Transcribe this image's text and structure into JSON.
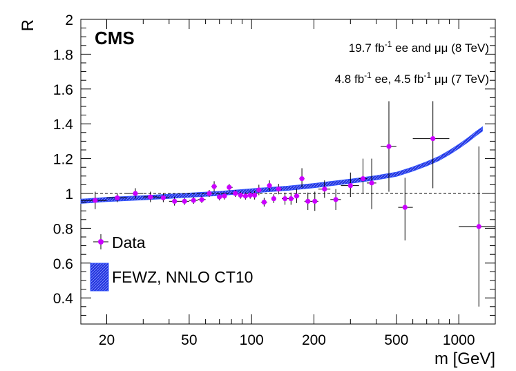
{
  "chart_data": {
    "type": "scatter",
    "title": "",
    "experiment_label": "CMS",
    "annotations": [
      {
        "text_parts": [
          "19.7 fb",
          "-1",
          " ee and ",
          "μμ",
          " (8 TeV)"
        ]
      },
      {
        "text_parts": [
          "4.8 fb",
          "-1",
          " ee, 4.5 fb",
          "-1",
          " ",
          "μμ",
          " (7 TeV)"
        ]
      }
    ],
    "xlabel": "m [GeV]",
    "ylabel": "R",
    "xscale": "log",
    "xlim": [
      15,
      1500
    ],
    "ylim": [
      0.25,
      2.0
    ],
    "xticks": [
      20,
      50,
      100,
      200,
      500,
      1000
    ],
    "xtick_labels": [
      "20",
      "50",
      "100",
      "200",
      "500",
      "1000"
    ],
    "yticks": [
      0.4,
      0.6,
      0.8,
      1.0,
      1.2,
      1.4,
      1.6,
      1.8,
      2.0
    ],
    "ytick_labels": [
      "0.4",
      "0.6",
      "0.8",
      "1",
      "1.2",
      "1.4",
      "1.6",
      "1.8",
      "2"
    ],
    "reference_line": 1.0,
    "legend": {
      "position": "bottom-left",
      "entries": [
        {
          "label": "Data",
          "kind": "marker"
        },
        {
          "label": "FEWZ, NNLO CT10",
          "kind": "band"
        }
      ]
    },
    "colors": {
      "data": "#cc00ff",
      "band": "#2233dd",
      "band_edge": "#3355ff"
    },
    "series": [
      {
        "name": "Data",
        "points": [
          {
            "x": 17.6,
            "xlo": 15,
            "xhi": 20,
            "y": 0.96,
            "ylo": 0.91,
            "yhi": 1.01
          },
          {
            "x": 22.5,
            "xlo": 20,
            "xhi": 25,
            "y": 0.975,
            "ylo": 0.95,
            "yhi": 1.0
          },
          {
            "x": 27.5,
            "xlo": 25,
            "xhi": 30,
            "y": 1.0,
            "ylo": 0.97,
            "yhi": 1.03
          },
          {
            "x": 32.5,
            "xlo": 30,
            "xhi": 35,
            "y": 0.98,
            "ylo": 0.95,
            "yhi": 1.01
          },
          {
            "x": 37.5,
            "xlo": 35,
            "xhi": 40,
            "y": 0.975,
            "ylo": 0.95,
            "yhi": 1.0
          },
          {
            "x": 42.5,
            "xlo": 40,
            "xhi": 45,
            "y": 0.955,
            "ylo": 0.93,
            "yhi": 0.98
          },
          {
            "x": 47.5,
            "xlo": 45,
            "xhi": 50,
            "y": 0.955,
            "ylo": 0.935,
            "yhi": 0.975
          },
          {
            "x": 52.5,
            "xlo": 50,
            "xhi": 55,
            "y": 0.96,
            "ylo": 0.94,
            "yhi": 0.98
          },
          {
            "x": 57.5,
            "xlo": 55,
            "xhi": 60,
            "y": 0.965,
            "ylo": 0.945,
            "yhi": 0.985
          },
          {
            "x": 62.5,
            "xlo": 60,
            "xhi": 64,
            "y": 1.0,
            "ylo": 0.98,
            "yhi": 1.02
          },
          {
            "x": 66,
            "xlo": 64,
            "xhi": 68,
            "y": 1.04,
            "ylo": 1.01,
            "yhi": 1.07
          },
          {
            "x": 70,
            "xlo": 68,
            "xhi": 72,
            "y": 0.98,
            "ylo": 0.96,
            "yhi": 1.0
          },
          {
            "x": 74,
            "xlo": 72,
            "xhi": 76,
            "y": 0.985,
            "ylo": 0.965,
            "yhi": 1.005
          },
          {
            "x": 78,
            "xlo": 76,
            "xhi": 81,
            "y": 1.035,
            "ylo": 1.015,
            "yhi": 1.055
          },
          {
            "x": 83.5,
            "xlo": 81,
            "xhi": 86,
            "y": 1.0,
            "ylo": 0.98,
            "yhi": 1.02
          },
          {
            "x": 88.5,
            "xlo": 86,
            "xhi": 91,
            "y": 0.99,
            "ylo": 0.97,
            "yhi": 1.01
          },
          {
            "x": 93.5,
            "xlo": 91,
            "xhi": 96,
            "y": 0.985,
            "ylo": 0.965,
            "yhi": 1.005
          },
          {
            "x": 98.5,
            "xlo": 96,
            "xhi": 101,
            "y": 0.99,
            "ylo": 0.97,
            "yhi": 1.01
          },
          {
            "x": 103.5,
            "xlo": 101,
            "xhi": 106,
            "y": 0.99,
            "ylo": 0.965,
            "yhi": 1.015
          },
          {
            "x": 108.5,
            "xlo": 106,
            "xhi": 111,
            "y": 1.02,
            "ylo": 0.99,
            "yhi": 1.05
          },
          {
            "x": 115,
            "xlo": 111,
            "xhi": 119,
            "y": 0.95,
            "ylo": 0.925,
            "yhi": 0.975
          },
          {
            "x": 122,
            "xlo": 119,
            "xhi": 125,
            "y": 1.045,
            "ylo": 1.015,
            "yhi": 1.075
          },
          {
            "x": 128,
            "xlo": 125,
            "xhi": 131,
            "y": 0.97,
            "ylo": 0.945,
            "yhi": 0.995
          },
          {
            "x": 135,
            "xlo": 131,
            "xhi": 140,
            "y": 1.025,
            "ylo": 0.995,
            "yhi": 1.055
          },
          {
            "x": 145,
            "xlo": 140,
            "xhi": 150,
            "y": 0.97,
            "ylo": 0.935,
            "yhi": 1.005
          },
          {
            "x": 155,
            "xlo": 150,
            "xhi": 160,
            "y": 0.97,
            "ylo": 0.935,
            "yhi": 1.005
          },
          {
            "x": 165,
            "xlo": 160,
            "xhi": 170,
            "y": 0.985,
            "ylo": 0.945,
            "yhi": 1.025
          },
          {
            "x": 175,
            "xlo": 170,
            "xhi": 180,
            "y": 1.085,
            "ylo": 1.035,
            "yhi": 1.145
          },
          {
            "x": 187,
            "xlo": 180,
            "xhi": 194,
            "y": 0.955,
            "ylo": 0.905,
            "yhi": 1.005
          },
          {
            "x": 202,
            "xlo": 194,
            "xhi": 210,
            "y": 0.955,
            "ylo": 0.9,
            "yhi": 1.01
          },
          {
            "x": 225,
            "xlo": 210,
            "xhi": 240,
            "y": 1.025,
            "ylo": 0.975,
            "yhi": 1.075
          },
          {
            "x": 255,
            "xlo": 240,
            "xhi": 270,
            "y": 0.965,
            "ylo": 0.905,
            "yhi": 1.025
          },
          {
            "x": 300,
            "xlo": 270,
            "xhi": 330,
            "y": 1.045,
            "ylo": 0.98,
            "yhi": 1.12
          },
          {
            "x": 345,
            "xlo": 330,
            "xhi": 360,
            "y": 1.085,
            "ylo": 1.0,
            "yhi": 1.2
          },
          {
            "x": 380,
            "xlo": 360,
            "xhi": 400,
            "y": 1.06,
            "ylo": 0.91,
            "yhi": 1.2
          },
          {
            "x": 460,
            "xlo": 420,
            "xhi": 500,
            "y": 1.27,
            "ylo": 1.01,
            "yhi": 1.53
          },
          {
            "x": 550,
            "xlo": 510,
            "xhi": 600,
            "y": 0.92,
            "ylo": 0.73,
            "yhi": 1.09
          },
          {
            "x": 750,
            "xlo": 600,
            "xhi": 900,
            "y": 1.315,
            "ylo": 1.03,
            "yhi": 1.53
          },
          {
            "x": 1250,
            "xlo": 1000,
            "xhi": 1500,
            "y": 0.81,
            "ylo": 0.35,
            "yhi": 1.27
          }
        ]
      },
      {
        "name": "FEWZ, NNLO CT10",
        "x": [
          15,
          20,
          30,
          50,
          70,
          100,
          150,
          200,
          300,
          400,
          500,
          600,
          700,
          800,
          900,
          1000,
          1100,
          1200,
          1300
        ],
        "y": [
          0.955,
          0.965,
          0.975,
          0.99,
          1.0,
          1.015,
          1.03,
          1.045,
          1.07,
          1.09,
          1.11,
          1.14,
          1.17,
          1.2,
          1.235,
          1.27,
          1.305,
          1.34,
          1.37
        ],
        "half_width": 0.012
      }
    ]
  }
}
